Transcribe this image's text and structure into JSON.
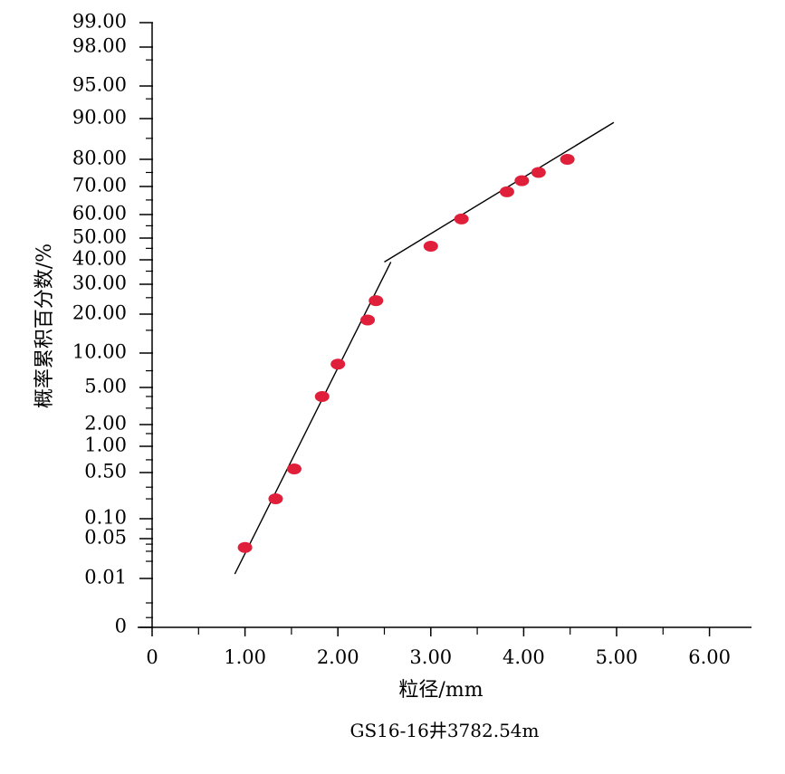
{
  "chart_data": {
    "type": "scatter",
    "title": "",
    "caption": "GS16-16井3782.54m",
    "xlabel": "粒径/mm",
    "ylabel": "概率累积百分数/%",
    "xlim": [
      0,
      6.45
    ],
    "x_ticks": [
      {
        "value": 0,
        "label": "0"
      },
      {
        "value": 1,
        "label": "1.00"
      },
      {
        "value": 2,
        "label": "2.00"
      },
      {
        "value": 3,
        "label": "3.00"
      },
      {
        "value": 4,
        "label": "4.00"
      },
      {
        "value": 5,
        "label": "5.00"
      },
      {
        "value": 6,
        "label": "6.00"
      }
    ],
    "x_minor_ticks": [
      0.5,
      1.5,
      2.5,
      3.5,
      4.5,
      5.5
    ],
    "y_scale": "probability",
    "y_ticks": [
      {
        "value": 0,
        "label": "0"
      },
      {
        "value": 0.01,
        "label": "0.01"
      },
      {
        "value": 0.05,
        "label": "0.05"
      },
      {
        "value": 0.1,
        "label": "0.10"
      },
      {
        "value": 0.5,
        "label": "0.50"
      },
      {
        "value": 1,
        "label": "1.00"
      },
      {
        "value": 2,
        "label": "2.00"
      },
      {
        "value": 5,
        "label": "5.00"
      },
      {
        "value": 10,
        "label": "10.00"
      },
      {
        "value": 20,
        "label": "20.00"
      },
      {
        "value": 30,
        "label": "30.00"
      },
      {
        "value": 40,
        "label": "40.00"
      },
      {
        "value": 50,
        "label": "50.00"
      },
      {
        "value": 60,
        "label": "60.00"
      },
      {
        "value": 70,
        "label": "70.00"
      },
      {
        "value": 80,
        "label": "80.00"
      },
      {
        "value": 90,
        "label": "90.00"
      },
      {
        "value": 95,
        "label": "95.00"
      },
      {
        "value": 98,
        "label": "98.00"
      },
      {
        "value": 99,
        "label": "99.00"
      }
    ],
    "y_minor_ticks": [
      0.002,
      0.005,
      0.02,
      0.03,
      0.04,
      0.07,
      0.2,
      0.3,
      0.7,
      1.5,
      3,
      4,
      7,
      15,
      25,
      35,
      45,
      55,
      65,
      75,
      85,
      93,
      97
    ],
    "series": [
      {
        "points": [
          {
            "x": 1.0,
            "y": 0.035
          },
          {
            "x": 1.33,
            "y": 0.2
          },
          {
            "x": 1.53,
            "y": 0.55
          },
          {
            "x": 1.83,
            "y": 4.0
          },
          {
            "x": 2.0,
            "y": 8.0
          },
          {
            "x": 2.32,
            "y": 18.0
          },
          {
            "x": 2.41,
            "y": 24.0
          },
          {
            "x": 3.0,
            "y": 46.0
          },
          {
            "x": 3.33,
            "y": 58.0
          },
          {
            "x": 3.82,
            "y": 68.0
          },
          {
            "x": 3.98,
            "y": 72.0
          },
          {
            "x": 4.16,
            "y": 75.0
          },
          {
            "x": 4.47,
            "y": 80.0
          }
        ],
        "color": "#e0203a"
      }
    ],
    "fit_lines": [
      {
        "from": {
          "x": 0.89,
          "y": 0.012
        },
        "to": {
          "x": 2.57,
          "y": 39.0
        }
      },
      {
        "from": {
          "x": 2.5,
          "y": 39.0
        },
        "to": {
          "x": 4.97,
          "y": 89.0
        }
      }
    ],
    "axis_color": "#000000",
    "grid": false,
    "legend": "none"
  }
}
